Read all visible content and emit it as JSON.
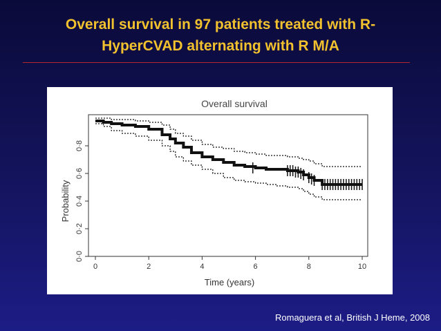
{
  "slide": {
    "title_line1": "Overall survival in 97 patients treated with R-",
    "title_line2": "HyperCVAD alternating with R M/A",
    "citation": "Romaguera et al, British J Heme, 2008"
  },
  "colors": {
    "title": "#f2c12e",
    "rule": "#b3272b",
    "background": "#14145e"
  },
  "chart_data": {
    "type": "line",
    "title": "Overall survival",
    "xlabel": "Time (years)",
    "ylabel": "Probability",
    "xlim": [
      0,
      10
    ],
    "ylim": [
      0,
      1.0
    ],
    "x_ticks": [
      "0",
      "2",
      "4",
      "6",
      "8",
      "10"
    ],
    "y_ticks": [
      "0·0",
      "0·2",
      "0·4",
      "0·6",
      "0·8"
    ],
    "grid": false,
    "series": [
      {
        "style": "solid",
        "x": [
          0,
          0.3,
          0.6,
          1.0,
          1.5,
          2.0,
          2.5,
          2.8,
          3.0,
          3.3,
          3.6,
          4.0,
          4.4,
          4.8,
          5.2,
          5.6,
          6.0,
          6.4,
          6.8,
          7.2,
          7.6,
          7.8,
          8.0,
          8.2,
          8.5,
          9.0,
          9.5,
          10.0
        ],
        "y": [
          0.98,
          0.97,
          0.96,
          0.95,
          0.94,
          0.92,
          0.88,
          0.85,
          0.82,
          0.79,
          0.75,
          0.72,
          0.7,
          0.68,
          0.66,
          0.65,
          0.64,
          0.63,
          0.63,
          0.62,
          0.61,
          0.59,
          0.57,
          0.55,
          0.52,
          0.52,
          0.52,
          0.52
        ]
      },
      {
        "style": "dotted-upper",
        "x": [
          0,
          0.3,
          0.6,
          1.0,
          1.5,
          2.0,
          2.5,
          2.8,
          3.0,
          3.3,
          3.6,
          4.0,
          4.4,
          4.8,
          5.2,
          5.6,
          6.0,
          6.4,
          6.8,
          7.2,
          7.6,
          7.8,
          8.0,
          8.2,
          8.5,
          9.0,
          9.5,
          10.0
        ],
        "y": [
          1.0,
          1.0,
          0.99,
          0.99,
          0.98,
          0.97,
          0.95,
          0.92,
          0.89,
          0.87,
          0.84,
          0.81,
          0.79,
          0.78,
          0.76,
          0.75,
          0.74,
          0.73,
          0.73,
          0.72,
          0.71,
          0.7,
          0.69,
          0.67,
          0.65,
          0.65,
          0.65,
          0.65
        ]
      },
      {
        "style": "dotted-lower",
        "x": [
          0,
          0.3,
          0.6,
          1.0,
          1.5,
          2.0,
          2.5,
          2.8,
          3.0,
          3.3,
          3.6,
          4.0,
          4.4,
          4.8,
          5.2,
          5.6,
          6.0,
          6.4,
          6.8,
          7.2,
          7.6,
          7.8,
          8.0,
          8.2,
          8.5,
          9.0,
          9.5,
          10.0
        ],
        "y": [
          0.96,
          0.94,
          0.91,
          0.89,
          0.87,
          0.84,
          0.8,
          0.76,
          0.72,
          0.69,
          0.66,
          0.63,
          0.6,
          0.57,
          0.55,
          0.54,
          0.53,
          0.52,
          0.51,
          0.5,
          0.49,
          0.47,
          0.45,
          0.43,
          0.41,
          0.41,
          0.41,
          0.41
        ]
      }
    ],
    "censor_marks": {
      "x": [
        5.9,
        7.2,
        7.3,
        7.4,
        7.5,
        7.6,
        7.7,
        7.8,
        8.0,
        8.1,
        8.2,
        8.5,
        8.6,
        8.7,
        8.8,
        8.9,
        9.0,
        9.1,
        9.2,
        9.3,
        9.4,
        9.5,
        9.6,
        9.7,
        9.8,
        9.9,
        10.0
      ],
      "y": [
        0.64,
        0.62,
        0.62,
        0.62,
        0.61,
        0.61,
        0.6,
        0.59,
        0.57,
        0.56,
        0.55,
        0.52,
        0.52,
        0.52,
        0.52,
        0.52,
        0.52,
        0.52,
        0.52,
        0.52,
        0.52,
        0.52,
        0.52,
        0.52,
        0.52,
        0.52,
        0.52
      ]
    }
  }
}
